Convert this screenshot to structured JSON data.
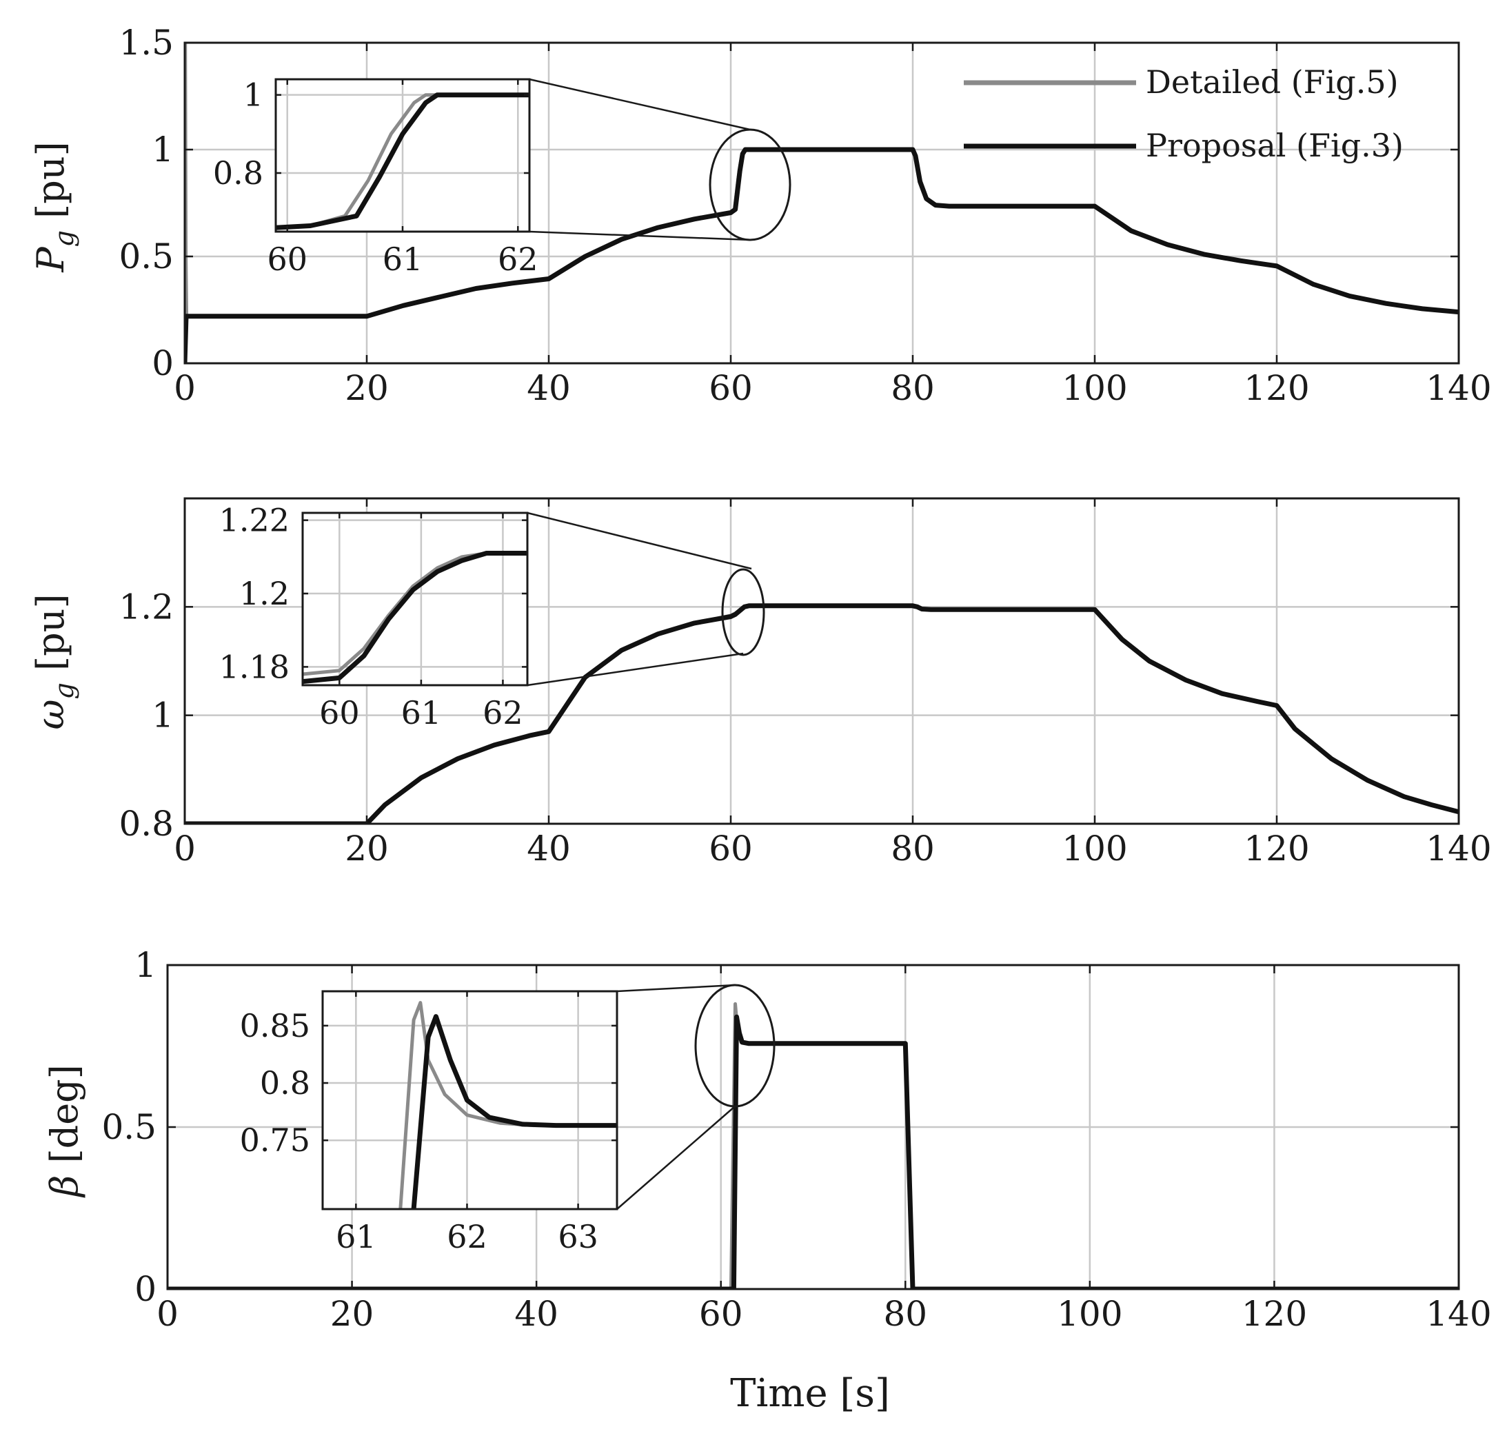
{
  "legend": {
    "detailed_label": "Detailed (Fig.5)",
    "proposal_label": "Proposal (Fig.3)",
    "detailed_color": "#8a8a8a",
    "proposal_color": "#111111"
  },
  "xlabel": "Time [s]",
  "chart_data": [
    {
      "type": "line",
      "id": "pg",
      "ylabel_main": "P",
      "ylabel_sub": "g",
      "ylabel_unit": "[pu]",
      "xlim": [
        0,
        140
      ],
      "ylim": [
        0,
        1.5
      ],
      "xticks": [
        0,
        20,
        40,
        60,
        80,
        100,
        120,
        140
      ],
      "yticks": [
        0,
        0.5,
        1,
        1.5
      ],
      "grid": true,
      "series": [
        {
          "name": "Detailed (Fig.5)",
          "points": [
            [
              0,
              0
            ],
            [
              0.05,
              1.5
            ],
            [
              0.12,
              0.5
            ],
            [
              0.2,
              0.22
            ],
            [
              20,
              0.22
            ],
            [
              24,
              0.27
            ],
            [
              28,
              0.31
            ],
            [
              32,
              0.35
            ],
            [
              36,
              0.375
            ],
            [
              40,
              0.395
            ],
            [
              44,
              0.5
            ],
            [
              48,
              0.58
            ],
            [
              52,
              0.635
            ],
            [
              56,
              0.675
            ],
            [
              60,
              0.705
            ],
            [
              60.4,
              0.715
            ],
            [
              60.8,
              0.86
            ],
            [
              61.2,
              0.97
            ],
            [
              61.5,
              1
            ],
            [
              80,
              1
            ],
            [
              80.3,
              0.97
            ],
            [
              80.8,
              0.85
            ],
            [
              81.5,
              0.77
            ],
            [
              82.5,
              0.74
            ],
            [
              84,
              0.735
            ],
            [
              100,
              0.735
            ],
            [
              104,
              0.62
            ],
            [
              108,
              0.555
            ],
            [
              112,
              0.51
            ],
            [
              116,
              0.48
            ],
            [
              120,
              0.455
            ],
            [
              124,
              0.37
            ],
            [
              128,
              0.315
            ],
            [
              132,
              0.28
            ],
            [
              136,
              0.255
            ],
            [
              140,
              0.24
            ]
          ]
        },
        {
          "name": "Proposal (Fig.3)",
          "points": [
            [
              0,
              0
            ],
            [
              0.15,
              0.22
            ],
            [
              20,
              0.22
            ],
            [
              24,
              0.27
            ],
            [
              28,
              0.31
            ],
            [
              32,
              0.35
            ],
            [
              36,
              0.375
            ],
            [
              40,
              0.395
            ],
            [
              44,
              0.5
            ],
            [
              48,
              0.58
            ],
            [
              52,
              0.635
            ],
            [
              56,
              0.675
            ],
            [
              60,
              0.705
            ],
            [
              60.5,
              0.72
            ],
            [
              61,
              0.9
            ],
            [
              61.3,
              0.98
            ],
            [
              61.6,
              1
            ],
            [
              80,
              1
            ],
            [
              80.3,
              0.97
            ],
            [
              80.8,
              0.85
            ],
            [
              81.5,
              0.77
            ],
            [
              82.5,
              0.74
            ],
            [
              84,
              0.735
            ],
            [
              100,
              0.735
            ],
            [
              104,
              0.62
            ],
            [
              108,
              0.555
            ],
            [
              112,
              0.51
            ],
            [
              116,
              0.48
            ],
            [
              120,
              0.455
            ],
            [
              124,
              0.37
            ],
            [
              128,
              0.315
            ],
            [
              132,
              0.28
            ],
            [
              136,
              0.255
            ],
            [
              140,
              0.24
            ]
          ]
        }
      ],
      "inset": {
        "xlim": [
          59.9,
          62.1
        ],
        "ylim": [
          0.65,
          1.04
        ],
        "xticks": [
          60,
          61,
          62
        ],
        "yticks": [
          0.8,
          1
        ],
        "ytick_labels": [
          "0.8",
          "1"
        ],
        "series": [
          {
            "name": "Detailed (Fig.5)",
            "points": [
              [
                59.9,
                0.66
              ],
              [
                60.2,
                0.665
              ],
              [
                60.5,
                0.69
              ],
              [
                60.7,
                0.78
              ],
              [
                60.9,
                0.9
              ],
              [
                61.1,
                0.98
              ],
              [
                61.2,
                1.0
              ],
              [
                62.1,
                1.0
              ]
            ]
          },
          {
            "name": "Proposal (Fig.3)",
            "points": [
              [
                59.9,
                0.66
              ],
              [
                60.2,
                0.665
              ],
              [
                60.6,
                0.69
              ],
              [
                60.8,
                0.79
              ],
              [
                61.0,
                0.9
              ],
              [
                61.2,
                0.98
              ],
              [
                61.3,
                1.0
              ],
              [
                62.1,
                1.0
              ]
            ]
          }
        ]
      }
    },
    {
      "type": "line",
      "id": "wg",
      "ylabel_main": "ω",
      "ylabel_sub": "g",
      "ylabel_unit": "[pu]",
      "xlim": [
        0,
        140
      ],
      "ylim": [
        0.8,
        1.4
      ],
      "xticks": [
        0,
        20,
        40,
        60,
        80,
        100,
        120,
        140
      ],
      "yticks": [
        0.8,
        1,
        1.2
      ],
      "grid": true,
      "series": [
        {
          "name": "Detailed (Fig.5)",
          "points": [
            [
              0,
              0.8
            ],
            [
              20,
              0.8
            ],
            [
              22,
              0.835
            ],
            [
              26,
              0.885
            ],
            [
              30,
              0.92
            ],
            [
              34,
              0.945
            ],
            [
              38,
              0.963
            ],
            [
              40,
              0.97
            ],
            [
              42,
              1.02
            ],
            [
              44,
              1.07
            ],
            [
              48,
              1.12
            ],
            [
              52,
              1.15
            ],
            [
              56,
              1.17
            ],
            [
              60,
              1.184
            ],
            [
              60.5,
              1.188
            ],
            [
              61.5,
              1.2
            ],
            [
              62,
              1.202
            ],
            [
              80,
              1.202
            ],
            [
              80.5,
              1.2
            ],
            [
              81,
              1.196
            ],
            [
              82,
              1.195
            ],
            [
              100,
              1.195
            ],
            [
              103,
              1.14
            ],
            [
              106,
              1.1
            ],
            [
              110,
              1.065
            ],
            [
              114,
              1.04
            ],
            [
              118,
              1.025
            ],
            [
              120,
              1.018
            ],
            [
              122,
              0.975
            ],
            [
              126,
              0.92
            ],
            [
              130,
              0.88
            ],
            [
              134,
              0.85
            ],
            [
              137,
              0.835
            ],
            [
              140,
              0.822
            ]
          ]
        },
        {
          "name": "Proposal (Fig.3)",
          "points": [
            [
              0,
              0.8
            ],
            [
              20,
              0.8
            ],
            [
              22,
              0.835
            ],
            [
              26,
              0.885
            ],
            [
              30,
              0.92
            ],
            [
              34,
              0.945
            ],
            [
              38,
              0.963
            ],
            [
              40,
              0.97
            ],
            [
              42,
              1.02
            ],
            [
              44,
              1.07
            ],
            [
              48,
              1.12
            ],
            [
              52,
              1.15
            ],
            [
              56,
              1.17
            ],
            [
              60,
              1.182
            ],
            [
              60.5,
              1.186
            ],
            [
              61.5,
              1.2
            ],
            [
              62,
              1.202
            ],
            [
              80,
              1.202
            ],
            [
              80.5,
              1.2
            ],
            [
              81,
              1.196
            ],
            [
              82,
              1.195
            ],
            [
              100,
              1.195
            ],
            [
              103,
              1.14
            ],
            [
              106,
              1.1
            ],
            [
              110,
              1.065
            ],
            [
              114,
              1.04
            ],
            [
              118,
              1.025
            ],
            [
              120,
              1.018
            ],
            [
              122,
              0.975
            ],
            [
              126,
              0.92
            ],
            [
              130,
              0.88
            ],
            [
              134,
              0.85
            ],
            [
              137,
              0.835
            ],
            [
              140,
              0.822
            ]
          ]
        }
      ],
      "inset": {
        "xlim": [
          59.55,
          62.3
        ],
        "ylim": [
          1.175,
          1.222
        ],
        "xticks": [
          60,
          61,
          62
        ],
        "yticks": [
          1.18,
          1.2,
          1.22
        ],
        "ytick_labels": [
          "1.18",
          "1.2",
          "1.22"
        ],
        "series": [
          {
            "name": "Detailed (Fig.5)",
            "points": [
              [
                59.55,
                1.178
              ],
              [
                60.0,
                1.179
              ],
              [
                60.3,
                1.185
              ],
              [
                60.6,
                1.194
              ],
              [
                60.9,
                1.202
              ],
              [
                61.2,
                1.207
              ],
              [
                61.5,
                1.21
              ],
              [
                61.8,
                1.211
              ],
              [
                62.3,
                1.211
              ]
            ]
          },
          {
            "name": "Proposal (Fig.3)",
            "points": [
              [
                59.55,
                1.176
              ],
              [
                60.0,
                1.177
              ],
              [
                60.3,
                1.183
              ],
              [
                60.6,
                1.193
              ],
              [
                60.9,
                1.201
              ],
              [
                61.2,
                1.206
              ],
              [
                61.5,
                1.209
              ],
              [
                61.8,
                1.211
              ],
              [
                62.3,
                1.211
              ]
            ]
          }
        ]
      }
    },
    {
      "type": "line",
      "id": "beta",
      "ylabel_main": "β",
      "ylabel_unit": "[deg]",
      "xlim": [
        0,
        140
      ],
      "ylim": [
        0,
        1
      ],
      "xticks": [
        0,
        20,
        40,
        60,
        80,
        100,
        120,
        140
      ],
      "yticks": [
        0,
        0.5,
        1
      ],
      "grid": true,
      "series": [
        {
          "name": "Detailed (Fig.5)",
          "points": [
            [
              0,
              0
            ],
            [
              61.1,
              0
            ],
            [
              61.55,
              0.88
            ],
            [
              61.8,
              0.8
            ],
            [
              62.2,
              0.762
            ],
            [
              63,
              0.758
            ],
            [
              80,
              0.758
            ],
            [
              80.8,
              0
            ],
            [
              140,
              0
            ]
          ]
        },
        {
          "name": "Proposal (Fig.3)",
          "points": [
            [
              0,
              0
            ],
            [
              61.4,
              0
            ],
            [
              61.7,
              0.84
            ],
            [
              62,
              0.79
            ],
            [
              62.3,
              0.762
            ],
            [
              63,
              0.758
            ],
            [
              80,
              0.758
            ],
            [
              80.8,
              0
            ],
            [
              140,
              0
            ]
          ]
        }
      ],
      "inset": {
        "xlim": [
          60.7,
          63.35
        ],
        "ylim": [
          0.69,
          0.88
        ],
        "xticks": [
          61,
          62,
          63
        ],
        "yticks": [
          0.75,
          0.8,
          0.85
        ],
        "ytick_labels": [
          "0.75",
          "0.8",
          "0.85"
        ],
        "series": [
          {
            "name": "Detailed (Fig.5)",
            "points": [
              [
                61.4,
                0.69
              ],
              [
                61.52,
                0.855
              ],
              [
                61.58,
                0.87
              ],
              [
                61.65,
                0.82
              ],
              [
                61.8,
                0.79
              ],
              [
                62.0,
                0.772
              ],
              [
                62.3,
                0.765
              ],
              [
                62.6,
                0.763
              ],
              [
                63.35,
                0.763
              ]
            ]
          },
          {
            "name": "Proposal (Fig.3)",
            "points": [
              [
                61.52,
                0.69
              ],
              [
                61.65,
                0.84
              ],
              [
                61.72,
                0.858
              ],
              [
                61.85,
                0.82
              ],
              [
                62.0,
                0.785
              ],
              [
                62.2,
                0.77
              ],
              [
                62.5,
                0.764
              ],
              [
                62.8,
                0.763
              ],
              [
                63.35,
                0.763
              ]
            ]
          }
        ]
      }
    }
  ]
}
